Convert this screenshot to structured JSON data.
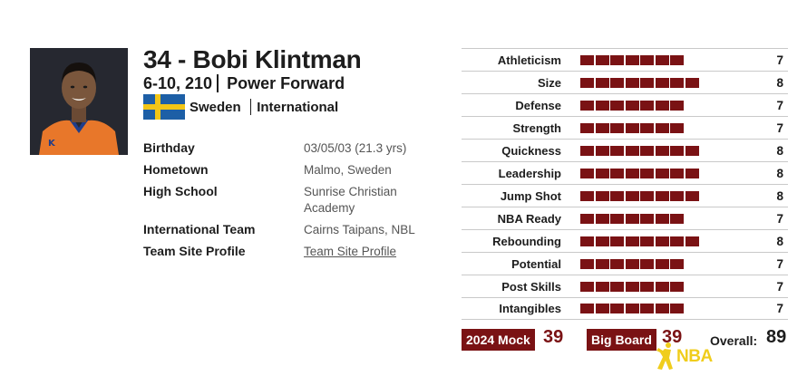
{
  "player": {
    "number_name": "34 - Bobi Klintman",
    "height_weight": "6-10, 210",
    "position": "Power Forward",
    "country": "Sweden",
    "region": "International"
  },
  "info": [
    {
      "label": "Birthday",
      "value": "03/05/03 (21.3 yrs)"
    },
    {
      "label": "Hometown",
      "value": "Malmo, Sweden"
    },
    {
      "label": "High School",
      "value": "Sunrise Christian Academy"
    },
    {
      "label": "International Team",
      "value": "Cairns Taipans, NBL"
    },
    {
      "label": "Team Site Profile",
      "value": "Team Site Profile"
    }
  ],
  "ratings": [
    {
      "label": "Athleticism",
      "value": "7",
      "score": 7
    },
    {
      "label": "Size",
      "value": "8",
      "score": 8
    },
    {
      "label": "Defense",
      "value": "7",
      "score": 7
    },
    {
      "label": "Strength",
      "value": "7",
      "score": 7
    },
    {
      "label": "Quickness",
      "value": "8",
      "score": 8
    },
    {
      "label": "Leadership",
      "value": "8",
      "score": 8
    },
    {
      "label": "Jump Shot",
      "value": "8",
      "score": 8
    },
    {
      "label": "NBA Ready",
      "value": "7",
      "score": 7
    },
    {
      "label": "Rebounding",
      "value": "8",
      "score": 8
    },
    {
      "label": "Potential",
      "value": "7",
      "score": 7
    },
    {
      "label": "Post Skills",
      "value": "7",
      "score": 7
    },
    {
      "label": "Intangibles",
      "value": "7",
      "score": 7
    }
  ],
  "summary": {
    "mock_label": "2024 Mock",
    "mock_value": "39",
    "bigboard_label": "Big Board",
    "bigboard_value": "39",
    "overall_label": "Overall:",
    "overall_value": "89"
  },
  "logo": {
    "text": "NBA"
  },
  "colors": {
    "accent": "#7a1214",
    "flag_blue": "#1d5fa6",
    "flag_yellow": "#f2c617",
    "logo_yellow": "#f0cd1c"
  }
}
